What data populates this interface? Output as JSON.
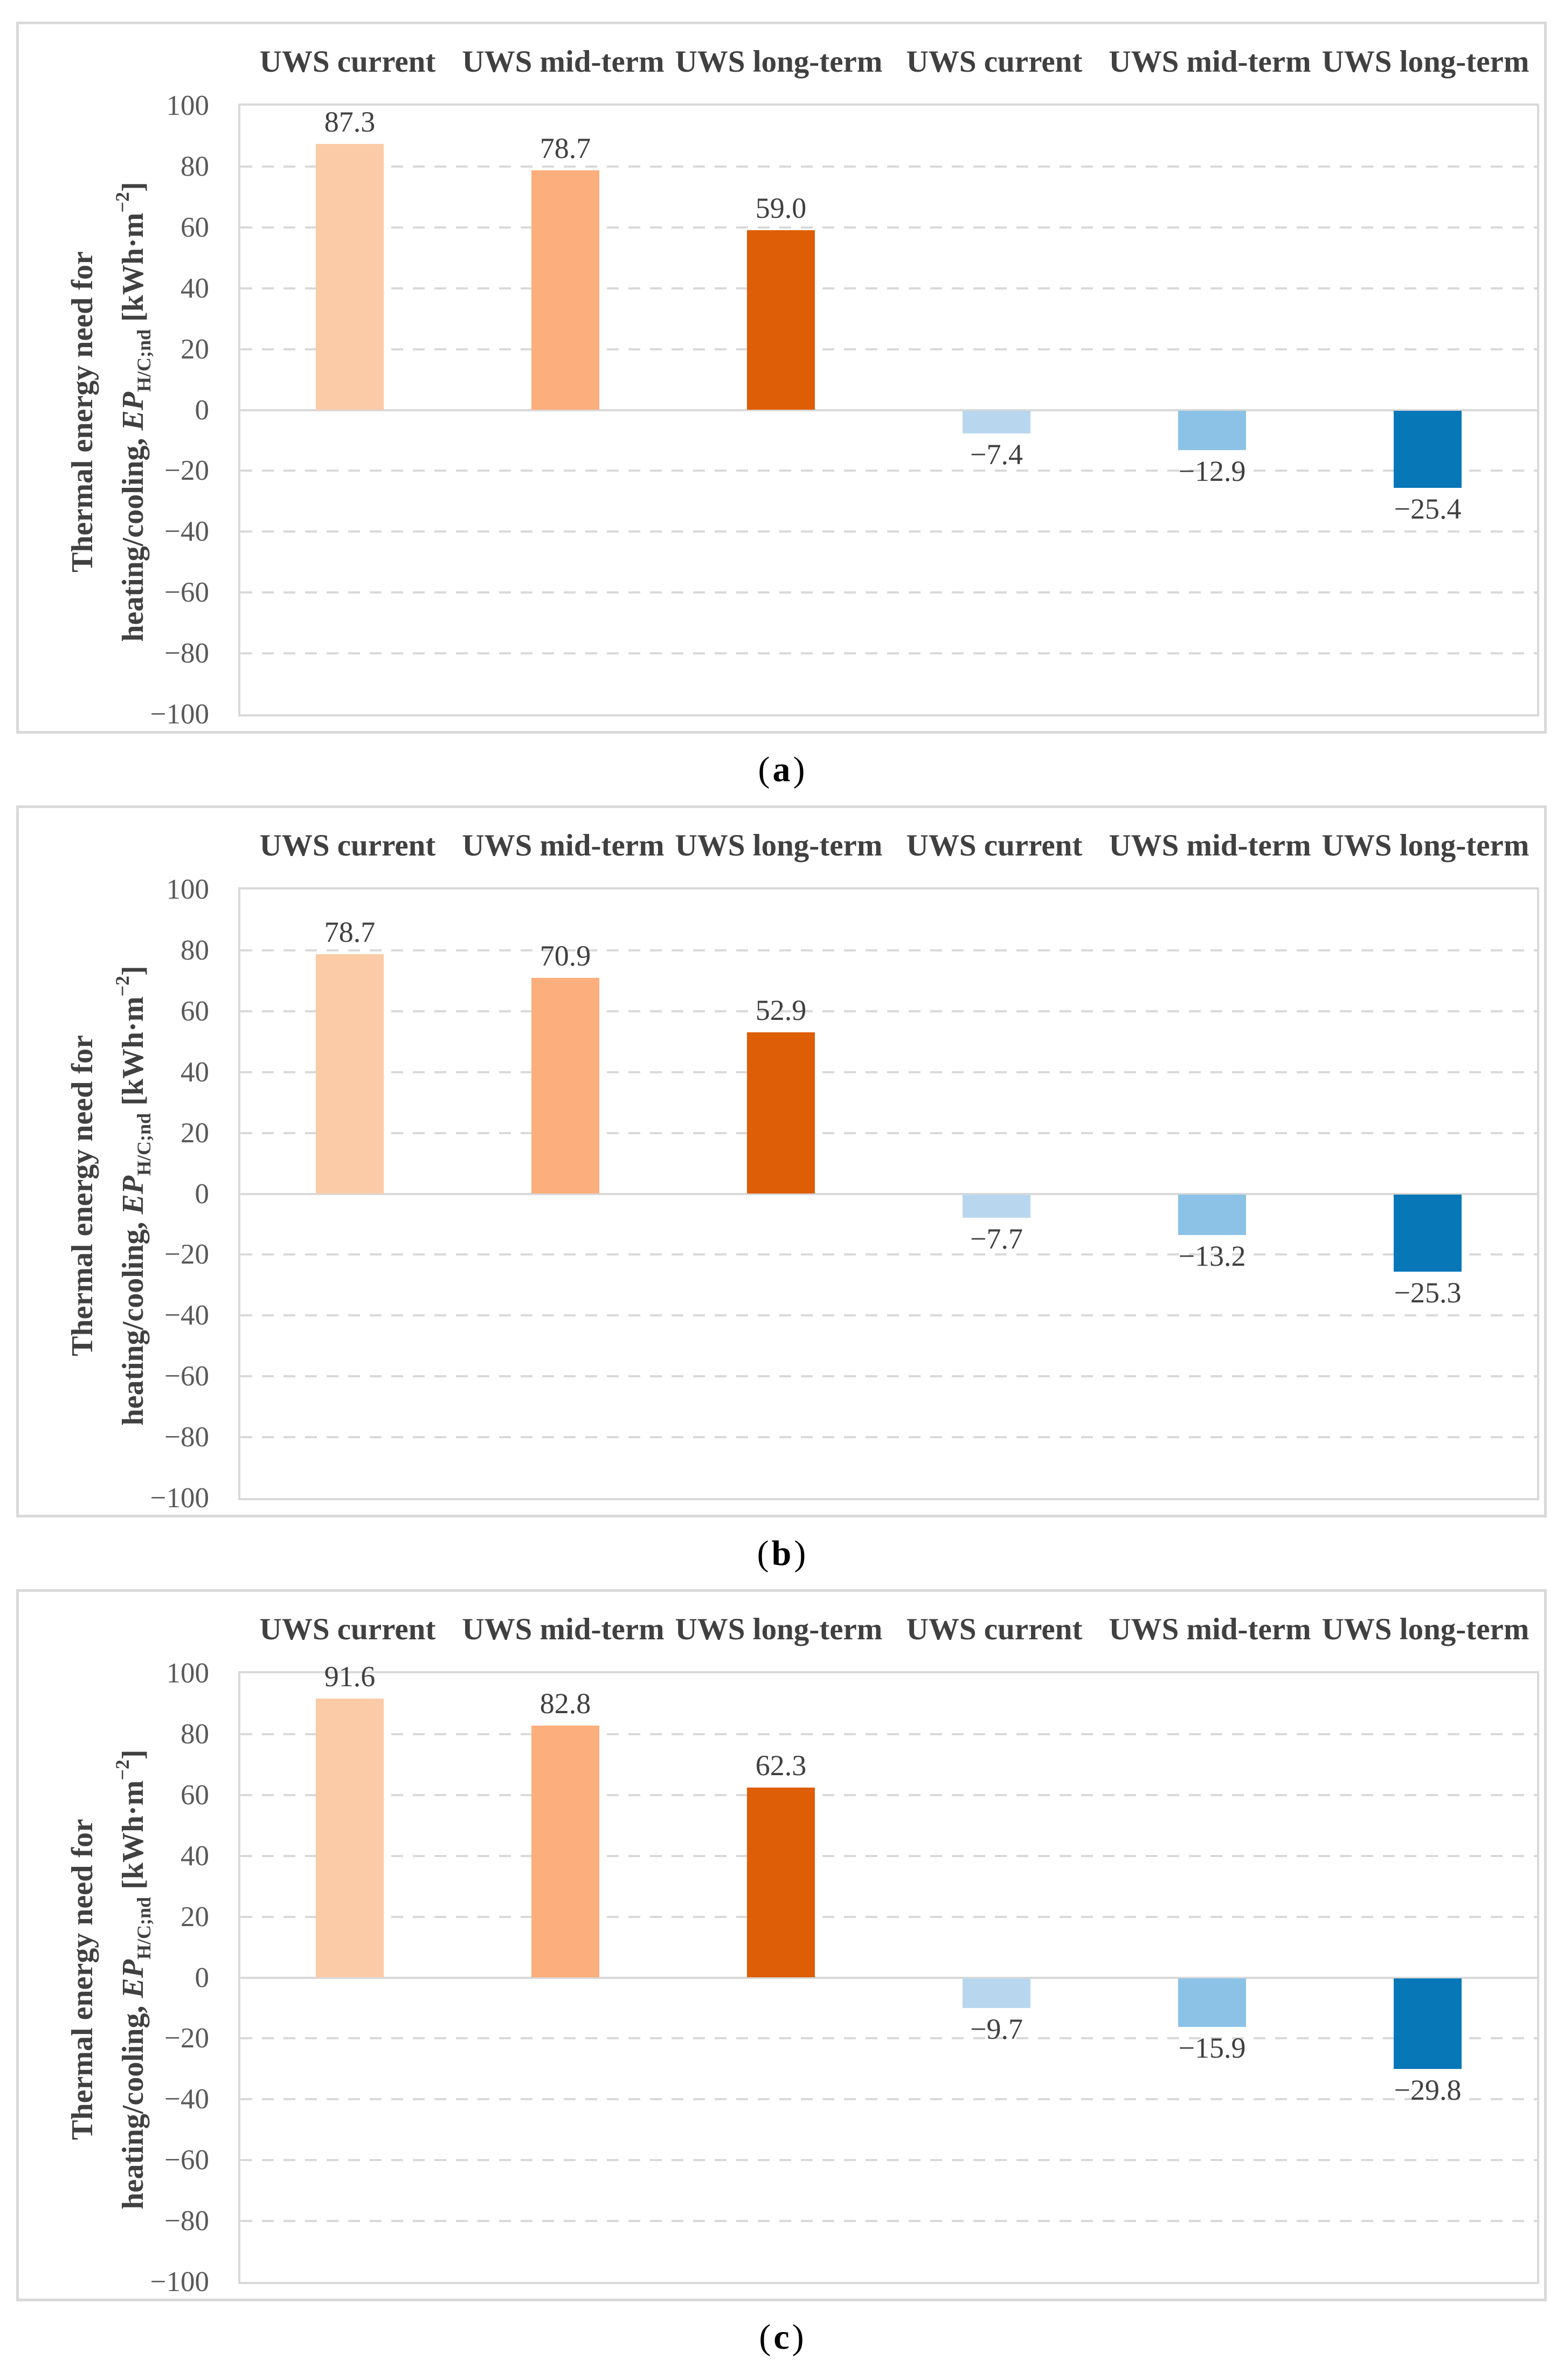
{
  "chart_common": {
    "group_headers": [
      "UWS current",
      "UWS mid-term",
      "UWS long-term",
      "UWS current",
      "UWS mid-term",
      "UWS long-term"
    ],
    "yticks": [
      100,
      80,
      60,
      40,
      20,
      0,
      -20,
      -40,
      -60,
      -80,
      -100
    ],
    "ytick_labels": [
      "100",
      "80",
      "60",
      "40",
      "20",
      "0",
      "−20",
      "−40",
      "−60",
      "−80",
      "−100"
    ],
    "ylabel_rich": {
      "line1": "Thermal energy need for",
      "line2_pre": "heating/cooling, ",
      "ep": "EP",
      "sub": "H/C;nd",
      "unit_pre": " [kWh·m",
      "sup": "−2",
      "unit_post": "]"
    },
    "bar_colors": [
      "#FBCBA7",
      "#FCAE7C",
      "#DD5E07",
      "#B8D7EE",
      "#8DC2E7",
      "#0777B8"
    ],
    "ui_colors": {
      "grid_and_borders": "#D9D9D9",
      "tick_text": "#595959",
      "header_text": "#404040",
      "value_text": "#404040",
      "caption_text": "#000000"
    }
  },
  "chart_data": [
    {
      "type": "bar",
      "caption": {
        "open": "(",
        "letter": "a",
        "close": ")"
      },
      "categories": [
        "UWS current",
        "UWS mid-term",
        "UWS long-term",
        "UWS current",
        "UWS mid-term",
        "UWS long-term"
      ],
      "values": [
        87.3,
        78.7,
        59.0,
        -7.4,
        -12.9,
        -25.4
      ],
      "value_labels": [
        "87.3",
        "78.7",
        "59.0",
        "−7.4",
        "−12.9",
        "−25.4"
      ],
      "ylabel": "Thermal energy need for heating/cooling, EP H/C;nd [kWh·m−2]",
      "xlabel": "",
      "ylim": [
        -100,
        100
      ],
      "ytick_step": 20,
      "grid": "horizontal-dashed",
      "legend": "none"
    },
    {
      "type": "bar",
      "caption": {
        "open": "(",
        "letter": "b",
        "close": ")"
      },
      "categories": [
        "UWS current",
        "UWS mid-term",
        "UWS long-term",
        "UWS current",
        "UWS mid-term",
        "UWS long-term"
      ],
      "values": [
        78.7,
        70.9,
        52.9,
        -7.7,
        -13.2,
        -25.3
      ],
      "value_labels": [
        "78.7",
        "70.9",
        "52.9",
        "−7.7",
        "−13.2",
        "−25.3"
      ],
      "ylabel": "Thermal energy need for heating/cooling, EP H/C;nd [kWh·m−2]",
      "xlabel": "",
      "ylim": [
        -100,
        100
      ],
      "ytick_step": 20,
      "grid": "horizontal-dashed",
      "legend": "none"
    },
    {
      "type": "bar",
      "caption": {
        "open": "(",
        "letter": "c",
        "close": ")"
      },
      "categories": [
        "UWS current",
        "UWS mid-term",
        "UWS long-term",
        "UWS current",
        "UWS mid-term",
        "UWS long-term"
      ],
      "values": [
        91.6,
        82.8,
        62.3,
        -9.7,
        -15.9,
        -29.8
      ],
      "value_labels": [
        "91.6",
        "82.8",
        "62.3",
        "−9.7",
        "−15.9",
        "−29.8"
      ],
      "ylabel": "Thermal energy need for heating/cooling, EP H/C;nd [kWh·m−2]",
      "xlabel": "",
      "ylim": [
        -100,
        100
      ],
      "ytick_step": 20,
      "grid": "horizontal-dashed",
      "legend": "none"
    }
  ]
}
